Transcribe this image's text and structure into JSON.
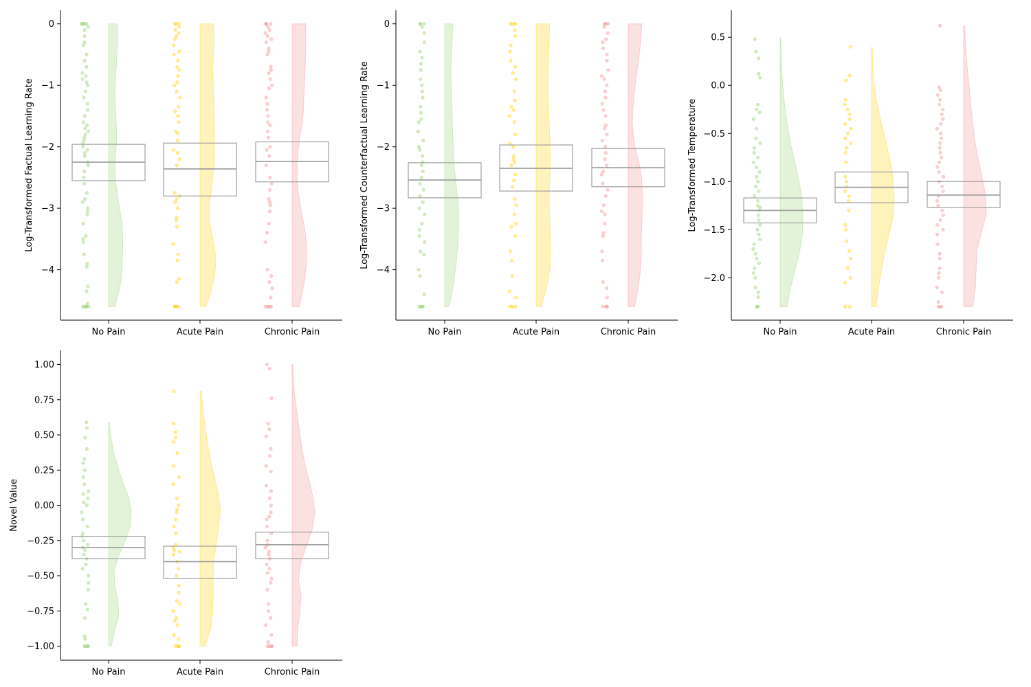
{
  "colors": {
    "No Pain": "#a8d98a",
    "Acute Pain": "#ffd92f",
    "Chronic Pain": "#f4a3a3",
    "box": "#a0a0a0",
    "axis": "#000000"
  },
  "chart_data": [
    {
      "type": "raincloud",
      "ylabel": "Log-Transformed Factual Learning Rate",
      "categories": [
        "No Pain",
        "Acute Pain",
        "Chronic Pain"
      ],
      "ylim": [
        -4.82,
        0.22
      ],
      "yticks": [
        0,
        -1,
        -2,
        -3,
        -4
      ],
      "ytick_labels": [
        "0",
        "−1",
        "−2",
        "−3",
        "−4"
      ],
      "boxes": [
        {
          "q1": -2.55,
          "median": -2.25,
          "q3": -1.96
        },
        {
          "q1": -2.8,
          "median": -2.36,
          "q3": -1.94
        },
        {
          "q1": -2.57,
          "median": -2.24,
          "q3": -1.92
        }
      ],
      "ranges": [
        [
          -4.6,
          0
        ],
        [
          -4.6,
          0
        ],
        [
          -4.6,
          0
        ]
      ],
      "densities": [
        [
          0.28,
          0.45,
          0.55,
          0.6,
          0.62,
          0.62,
          0.58,
          0.48,
          0.38,
          0.3,
          0.28,
          0.32,
          0.36,
          0.34,
          0.3,
          0.28,
          0.3,
          0.34,
          0.38,
          0.4,
          0.38
        ],
        [
          0.25,
          0.48,
          0.62,
          0.7,
          0.66,
          0.54,
          0.42,
          0.4,
          0.48,
          0.56,
          0.62,
          0.64,
          0.63,
          0.62,
          0.61,
          0.6,
          0.58,
          0.56,
          0.6,
          0.6,
          0.6
        ],
        [
          0.32,
          0.45,
          0.56,
          0.62,
          0.64,
          0.6,
          0.5,
          0.38,
          0.28,
          0.22,
          0.22,
          0.26,
          0.34,
          0.45,
          0.5,
          0.52,
          0.55,
          0.58,
          0.6,
          0.6,
          0.6
        ]
      ],
      "points": [
        [
          -4.6,
          -4.6,
          -4.6,
          -4.6,
          -4.6,
          -4.6,
          -4.6,
          -4.27,
          -4.35,
          -4.55,
          -3.95,
          -3.75,
          -3.9,
          -3.5,
          -3.45,
          -3.55,
          -3.25,
          -3.1,
          -3.05,
          -3.0,
          -2.9,
          -2.85,
          -2.75,
          -2.6,
          -2.5,
          -2.4,
          -2.3,
          -2.25,
          -2.15,
          -2.1,
          -2.05,
          -2.0,
          -1.95,
          -1.9,
          -1.85,
          -1.8,
          -1.75,
          -1.7,
          -1.65,
          -1.6,
          -1.5,
          -1.4,
          -1.3,
          -1.2,
          -1.1,
          -1.0,
          -0.95,
          -0.9,
          -0.85,
          -0.8,
          -0.7,
          -0.6,
          -0.5,
          -0.35,
          -0.3,
          -0.2,
          -0.1,
          -0.05,
          0,
          0,
          0,
          0,
          0,
          0
        ],
        [
          -4.6,
          -4.6,
          -4.6,
          -4.6,
          -4.6,
          -4.6,
          -4.2,
          -4.15,
          -3.85,
          -3.75,
          -3.58,
          -3.3,
          -3.2,
          -3.15,
          -3.0,
          -2.9,
          -2.85,
          -2.8,
          -2.75,
          -2.3,
          -2.2,
          -2.1,
          -2.05,
          -1.9,
          -1.78,
          -1.75,
          -1.6,
          -1.5,
          -1.42,
          -1.35,
          -1.2,
          -1.1,
          -1.0,
          -0.95,
          -0.85,
          -0.75,
          -0.7,
          -0.6,
          -0.5,
          -0.45,
          -0.35,
          -0.25,
          -0.2,
          -0.15,
          -0.1,
          -0.05,
          0,
          0,
          0
        ],
        [
          -4.6,
          -4.6,
          -4.6,
          -4.6,
          -4.6,
          -4.45,
          -4.3,
          -4.2,
          -4.1,
          -4.0,
          -3.55,
          -3.4,
          -3.25,
          -3.05,
          -2.95,
          -2.9,
          -2.85,
          -2.7,
          -2.6,
          -2.5,
          -2.3,
          -2.15,
          -2.05,
          -2.0,
          -1.85,
          -1.75,
          -1.65,
          -1.6,
          -1.5,
          -1.4,
          -1.3,
          -1.2,
          -1.05,
          -1.0,
          -0.9,
          -0.8,
          -0.75,
          -0.7,
          -0.5,
          -0.45,
          -0.4,
          -0.3,
          -0.25,
          -0.2,
          -0.15,
          -0.1,
          -0.05,
          0,
          0,
          0,
          0,
          0
        ]
      ]
    },
    {
      "type": "raincloud",
      "ylabel": "Log-Transformed Counterfactual Learning Rate",
      "categories": [
        "No Pain",
        "Acute Pain",
        "Chronic Pain"
      ],
      "ylim": [
        -4.82,
        0.22
      ],
      "yticks": [
        0,
        -1,
        -2,
        -3,
        -4
      ],
      "ytick_labels": [
        "0",
        "−1",
        "−2",
        "−3",
        "−4"
      ],
      "boxes": [
        {
          "q1": -2.83,
          "median": -2.54,
          "q3": -2.26
        },
        {
          "q1": -2.72,
          "median": -2.35,
          "q3": -1.97
        },
        {
          "q1": -2.65,
          "median": -2.34,
          "q3": -2.03
        }
      ],
      "ranges": [
        [
          -4.6,
          0
        ],
        [
          -4.6,
          0
        ],
        [
          -4.6,
          0
        ]
      ],
      "densities": [
        [
          0.18,
          0.32,
          0.42,
          0.5,
          0.56,
          0.6,
          0.62,
          0.6,
          0.55,
          0.48,
          0.42,
          0.38,
          0.36,
          0.34,
          0.32,
          0.3,
          0.28,
          0.28,
          0.3,
          0.34,
          0.36
        ],
        [
          0.22,
          0.4,
          0.55,
          0.62,
          0.64,
          0.62,
          0.6,
          0.58,
          0.58,
          0.6,
          0.62,
          0.62,
          0.6,
          0.58,
          0.55,
          0.52,
          0.52,
          0.54,
          0.56,
          0.58,
          0.6
        ],
        [
          0.28,
          0.4,
          0.5,
          0.56,
          0.58,
          0.58,
          0.6,
          0.62,
          0.62,
          0.6,
          0.5,
          0.34,
          0.22,
          0.18,
          0.2,
          0.26,
          0.34,
          0.42,
          0.5,
          0.56,
          0.6
        ]
      ],
      "points": [
        [
          -4.6,
          -4.6,
          -4.6,
          -4.6,
          -4.6,
          -4.4,
          -4.1,
          -4.0,
          -3.75,
          -3.7,
          -3.55,
          -3.45,
          -3.35,
          -3.25,
          -3.1,
          -3.0,
          -2.9,
          -2.8,
          -2.7,
          -2.6,
          -2.5,
          -2.4,
          -2.3,
          -2.25,
          -2.15,
          -2.05,
          -2.0,
          -1.9,
          -1.75,
          -1.6,
          -1.55,
          -1.45,
          -1.35,
          -1.2,
          -1.1,
          -1.0,
          -0.9,
          -0.75,
          -0.65,
          -0.55,
          -0.45,
          -0.3,
          -0.15,
          -0.05,
          0,
          0,
          0
        ],
        [
          -4.6,
          -4.6,
          -4.6,
          -4.6,
          -4.45,
          -4.35,
          -4.1,
          -3.85,
          -3.7,
          -3.45,
          -3.3,
          -3.25,
          -3.1,
          -2.95,
          -2.85,
          -2.65,
          -2.55,
          -2.45,
          -2.3,
          -2.25,
          -2.2,
          -2.15,
          -2.0,
          -1.95,
          -1.8,
          -1.6,
          -1.5,
          -1.4,
          -1.35,
          -1.25,
          -1.1,
          -0.9,
          -0.8,
          -0.7,
          -0.6,
          -0.45,
          -0.35,
          -0.2,
          -0.1,
          0,
          0,
          0,
          0
        ],
        [
          -4.6,
          -4.6,
          -4.6,
          -4.6,
          -4.45,
          -4.3,
          -4.2,
          -3.85,
          -3.7,
          -3.45,
          -3.4,
          -3.25,
          -3.1,
          -3.05,
          -2.95,
          -2.8,
          -2.7,
          -2.6,
          -2.45,
          -2.4,
          -2.3,
          -2.2,
          -2.1,
          -2.0,
          -1.9,
          -1.8,
          -1.7,
          -1.65,
          -1.5,
          -1.4,
          -1.3,
          -1.2,
          -1.1,
          -1.0,
          -0.9,
          -0.85,
          -0.75,
          -0.6,
          -0.5,
          -0.4,
          -0.3,
          -0.25,
          -0.15,
          -0.05,
          0,
          0,
          0,
          0
        ]
      ]
    },
    {
      "type": "raincloud",
      "ylabel": "Log-Transformed Temperature",
      "categories": [
        "No Pain",
        "Acute Pain",
        "Chronic Pain"
      ],
      "ylim": [
        -2.44,
        0.78
      ],
      "yticks": [
        0.5,
        0.0,
        -0.5,
        -1.0,
        -1.5,
        -2.0
      ],
      "ytick_labels": [
        "0.5",
        "0.0",
        "−0.5",
        "−1.0",
        "−1.5",
        "−2.0"
      ],
      "boxes": [
        {
          "q1": -1.43,
          "median": -1.3,
          "q3": -1.17
        },
        {
          "q1": -1.22,
          "median": -1.06,
          "q3": -0.9
        },
        {
          "q1": -1.27,
          "median": -1.14,
          "q3": -1.0
        }
      ],
      "ranges": [
        [
          -2.3,
          0.49
        ],
        [
          -2.3,
          0.4
        ],
        [
          -2.3,
          0.62
        ]
      ],
      "densities": [
        [
          0.3,
          0.45,
          0.65,
          0.85,
          0.98,
          1.0,
          0.96,
          0.84,
          0.66,
          0.48,
          0.34,
          0.22,
          0.14,
          0.08,
          0.05,
          0.03
        ],
        [
          0.2,
          0.3,
          0.42,
          0.56,
          0.74,
          0.92,
          1.0,
          0.98,
          0.88,
          0.72,
          0.55,
          0.36,
          0.2,
          0.1,
          0.05,
          0.03
        ],
        [
          0.4,
          0.52,
          0.55,
          0.58,
          0.8,
          1.0,
          0.96,
          0.8,
          0.62,
          0.48,
          0.38,
          0.3,
          0.22,
          0.14,
          0.08,
          0.05
        ]
      ],
      "points": [
        [
          -2.3,
          -2.3,
          -2.3,
          -2.2,
          -2.15,
          -2.1,
          -2.0,
          -1.95,
          -1.9,
          -1.85,
          -1.8,
          -1.75,
          -1.7,
          -1.65,
          -1.6,
          -1.55,
          -1.5,
          -1.45,
          -1.4,
          -1.35,
          -1.3,
          -1.27,
          -1.25,
          -1.2,
          -1.15,
          -1.1,
          -1.05,
          -1.0,
          -0.95,
          -0.9,
          -0.85,
          -0.8,
          -0.75,
          -0.7,
          -0.65,
          -0.6,
          -0.55,
          -0.45,
          -0.35,
          -0.28,
          -0.25,
          -0.2,
          0.08,
          0.12,
          0.28,
          0.35,
          0.48
        ],
        [
          -2.3,
          -2.3,
          -2.05,
          -2.0,
          -1.9,
          -1.8,
          -1.72,
          -1.62,
          -1.5,
          -1.45,
          -1.3,
          -1.2,
          -1.15,
          -1.1,
          -1.05,
          -1.0,
          -0.95,
          -0.8,
          -0.7,
          -0.65,
          -0.6,
          -0.55,
          -0.5,
          -0.45,
          -0.4,
          -0.35,
          -0.3,
          -0.25,
          -0.2,
          -0.15,
          0.05,
          0.1,
          0.4
        ],
        [
          -2.3,
          -2.3,
          -2.3,
          -2.25,
          -2.15,
          -2.1,
          -2.0,
          -1.95,
          -1.9,
          -1.8,
          -1.75,
          -1.65,
          -1.55,
          -1.5,
          -1.45,
          -1.4,
          -1.35,
          -1.3,
          -1.25,
          -1.2,
          -1.15,
          -1.1,
          -1.05,
          -1.0,
          -0.95,
          -0.9,
          -0.85,
          -0.8,
          -0.75,
          -0.7,
          -0.65,
          -0.6,
          -0.55,
          -0.5,
          -0.45,
          -0.4,
          -0.35,
          -0.3,
          -0.25,
          -0.2,
          -0.15,
          -0.1,
          -0.05,
          -0.02,
          0.62
        ]
      ]
    },
    {
      "type": "raincloud",
      "ylabel": "Novel Value",
      "categories": [
        "No Pain",
        "Acute Pain",
        "Chronic Pain"
      ],
      "ylim": [
        -1.1,
        1.1
      ],
      "yticks": [
        1.0,
        0.75,
        0.5,
        0.25,
        0.0,
        -0.25,
        -0.5,
        -0.75,
        -1.0
      ],
      "ytick_labels": [
        "1.00",
        "0.75",
        "0.50",
        "0.25",
        "0.00",
        "−0.25",
        "−0.50",
        "−0.75",
        "−1.00"
      ],
      "boxes": [
        {
          "q1": -0.38,
          "median": -0.3,
          "q3": -0.22
        },
        {
          "q1": -0.52,
          "median": -0.4,
          "q3": -0.29
        },
        {
          "q1": -0.38,
          "median": -0.28,
          "q3": -0.19
        }
      ],
      "ranges": [
        [
          -1.0,
          0.59
        ],
        [
          -1.0,
          0.81
        ],
        [
          -1.0,
          1.0
        ]
      ],
      "densities": [
        [
          0.12,
          0.25,
          0.45,
          0.42,
          0.28,
          0.24,
          0.42,
          0.72,
          0.95,
          1.0,
          0.88,
          0.62,
          0.4,
          0.22,
          0.1,
          0.03
        ],
        [
          0.22,
          0.46,
          0.56,
          0.58,
          0.58,
          0.6,
          0.72,
          0.82,
          0.9,
          0.8,
          0.62,
          0.45,
          0.32,
          0.22,
          0.12,
          0.06
        ],
        [
          0.22,
          0.24,
          0.34,
          0.4,
          0.28,
          0.38,
          0.62,
          0.88,
          1.0,
          0.92,
          0.74,
          0.56,
          0.42,
          0.32,
          0.22,
          0.12,
          0.06,
          0.02
        ]
      ],
      "points": [
        [
          -1.0,
          -1.0,
          -1.0,
          -1.0,
          -1.0,
          -0.95,
          -0.93,
          -0.8,
          -0.74,
          -0.7,
          -0.6,
          -0.55,
          -0.5,
          -0.45,
          -0.42,
          -0.38,
          -0.35,
          -0.32,
          -0.3,
          -0.28,
          -0.25,
          -0.22,
          -0.2,
          -0.15,
          -0.1,
          -0.05,
          0.0,
          0.02,
          0.05,
          0.08,
          0.1,
          0.15,
          0.2,
          0.25,
          0.3,
          0.33,
          0.4,
          0.48,
          0.55,
          0.59
        ],
        [
          -1.0,
          -1.0,
          -1.0,
          -1.0,
          -0.95,
          -0.92,
          -0.85,
          -0.82,
          -0.8,
          -0.75,
          -0.7,
          -0.68,
          -0.62,
          -0.57,
          -0.5,
          -0.45,
          -0.4,
          -0.35,
          -0.33,
          -0.32,
          -0.3,
          -0.28,
          -0.2,
          -0.15,
          -0.1,
          -0.05,
          -0.03,
          0.0,
          0.05,
          0.15,
          0.2,
          0.28,
          0.37,
          0.45,
          0.48,
          0.52,
          0.58,
          0.81
        ],
        [
          -1.0,
          -1.0,
          -1.0,
          -1.0,
          -0.97,
          -0.92,
          -0.85,
          -0.8,
          -0.75,
          -0.7,
          -0.6,
          -0.55,
          -0.52,
          -0.48,
          -0.45,
          -0.42,
          -0.38,
          -0.35,
          -0.33,
          -0.3,
          -0.28,
          -0.25,
          -0.2,
          -0.15,
          -0.1,
          -0.08,
          -0.05,
          0.0,
          0.05,
          0.1,
          0.14,
          0.24,
          0.28,
          0.35,
          0.4,
          0.49,
          0.54,
          0.58,
          0.76,
          0.97,
          1.0
        ]
      ]
    }
  ]
}
